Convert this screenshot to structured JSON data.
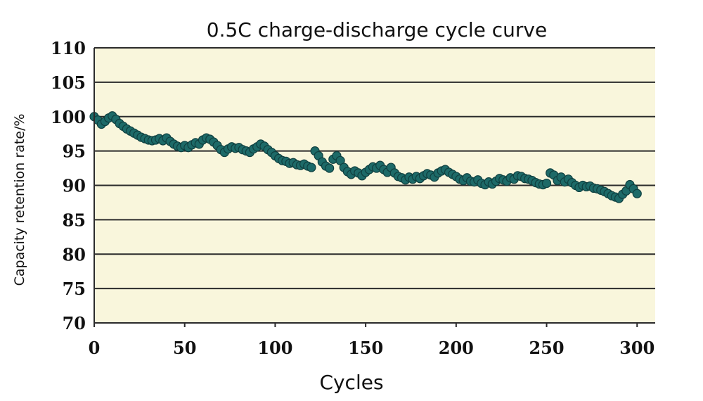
{
  "chart_data": {
    "type": "scatter",
    "title": "0.5C charge-discharge cycle curve",
    "xlabel": "Cycles",
    "ylabel": "Capacity retention rate/%",
    "xlim": [
      0,
      310
    ],
    "ylim": [
      70,
      110
    ],
    "xticks": [
      0,
      50,
      100,
      150,
      200,
      250,
      300
    ],
    "yticks": [
      70,
      75,
      80,
      85,
      90,
      95,
      100,
      105,
      110
    ],
    "grid": "horizontal",
    "legend": "none",
    "colors": {
      "plot_background": "#f9f6dc",
      "grid": "#2b2b2b",
      "marker_fill": "#1d6a68",
      "marker_edge": "#0f3f3f"
    },
    "series": [
      {
        "x": [
          0,
          2,
          4,
          6,
          8,
          10,
          12,
          14,
          16,
          18,
          20,
          22,
          24,
          26,
          28,
          30,
          32,
          34,
          36,
          38,
          40,
          42,
          44,
          46,
          48,
          50,
          52,
          54,
          56,
          58,
          60,
          62,
          64,
          66,
          68,
          70,
          72,
          74,
          76,
          78,
          80,
          82,
          84,
          86,
          88,
          90,
          92,
          94,
          96,
          98,
          100,
          102,
          104,
          106,
          108,
          110,
          112,
          114,
          116,
          118,
          120,
          122,
          124,
          126,
          128,
          130,
          132,
          134,
          136,
          138,
          140,
          142,
          144,
          146,
          148,
          150,
          152,
          154,
          156,
          158,
          160,
          162,
          164,
          166,
          168,
          170,
          172,
          174,
          176,
          178,
          180,
          182,
          184,
          186,
          188,
          190,
          192,
          194,
          196,
          198,
          200,
          202,
          204,
          206,
          208,
          210,
          212,
          214,
          216,
          218,
          220,
          222,
          224,
          226,
          228,
          230,
          232,
          234,
          236,
          238,
          240,
          242,
          244,
          246,
          248,
          250,
          252,
          254,
          256,
          258,
          260,
          262,
          264,
          266,
          268,
          270,
          272,
          274,
          276,
          278,
          280,
          282,
          284,
          286,
          288,
          290,
          292,
          294,
          296,
          298,
          300
        ],
        "y": [
          100.0,
          99.5,
          98.9,
          99.3,
          99.8,
          100.1,
          99.6,
          99.0,
          98.6,
          98.2,
          97.9,
          97.6,
          97.3,
          97.0,
          96.8,
          96.6,
          96.5,
          96.6,
          96.8,
          96.5,
          96.9,
          96.4,
          96.0,
          95.7,
          95.5,
          95.8,
          95.5,
          95.9,
          96.2,
          96.0,
          96.6,
          96.9,
          96.7,
          96.3,
          95.8,
          95.2,
          94.8,
          95.3,
          95.6,
          95.4,
          95.5,
          95.2,
          95.0,
          94.8,
          95.3,
          95.6,
          96.0,
          95.7,
          95.2,
          94.8,
          94.3,
          93.9,
          93.6,
          93.5,
          93.2,
          93.3,
          93.0,
          92.9,
          93.1,
          92.8,
          92.6,
          95.0,
          94.3,
          93.4,
          92.8,
          92.5,
          93.8,
          94.3,
          93.6,
          92.6,
          92.0,
          91.6,
          92.1,
          91.8,
          91.4,
          91.9,
          92.3,
          92.7,
          92.5,
          92.9,
          92.3,
          91.9,
          92.6,
          91.8,
          91.3,
          91.1,
          90.8,
          91.2,
          90.9,
          91.3,
          91.0,
          91.4,
          91.7,
          91.5,
          91.2,
          91.8,
          92.1,
          92.3,
          91.9,
          91.6,
          91.3,
          90.9,
          90.7,
          91.1,
          90.6,
          90.5,
          90.8,
          90.3,
          90.1,
          90.5,
          90.2,
          90.6,
          91.0,
          90.8,
          90.6,
          91.1,
          90.9,
          91.4,
          91.3,
          91.0,
          90.9,
          90.7,
          90.4,
          90.2,
          90.1,
          90.3,
          91.8,
          91.5,
          90.7,
          91.2,
          90.5,
          90.9,
          90.4,
          90.0,
          89.7,
          90.0,
          89.8,
          89.9,
          89.6,
          89.5,
          89.3,
          89.1,
          88.8,
          88.5,
          88.3,
          88.1,
          88.7,
          89.2,
          90.1,
          89.5,
          88.8
        ]
      }
    ]
  }
}
